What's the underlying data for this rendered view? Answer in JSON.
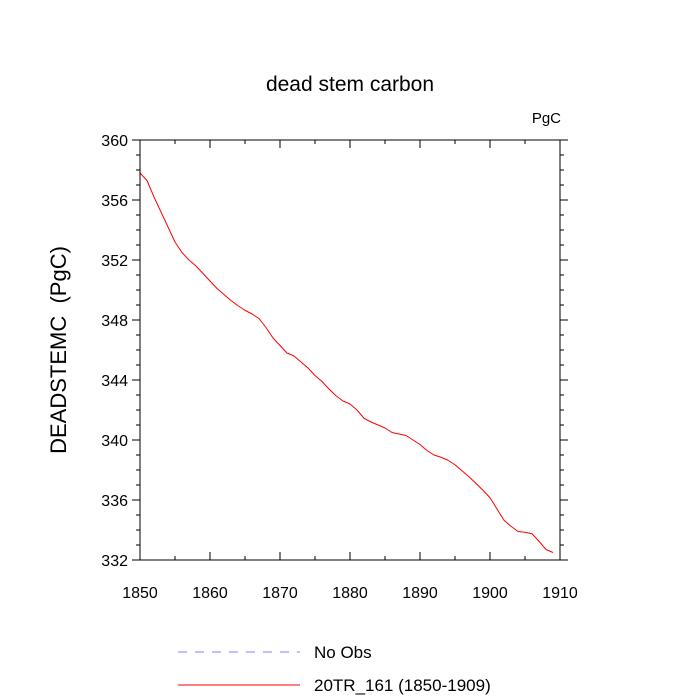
{
  "chart_data": {
    "type": "line",
    "title": "dead stem carbon",
    "units_label": "PgC",
    "xlabel": "",
    "ylabel": "DEADSTEMC  (PgC)",
    "xlim": [
      1850,
      1910
    ],
    "ylim": [
      332,
      360
    ],
    "x_ticks": [
      1850,
      1860,
      1870,
      1880,
      1890,
      1900,
      1910
    ],
    "y_ticks": [
      332,
      336,
      340,
      344,
      348,
      352,
      356,
      360
    ],
    "x_minor_step": 5,
    "y_minor_step": 1,
    "grid": false,
    "legend_position": "bottom",
    "legend": [
      {
        "name": "No Obs",
        "color": "#8080ff",
        "dash": "dashed"
      },
      {
        "name": "20TR_161 (1850-1909)",
        "color": "#ff0000",
        "dash": "solid"
      }
    ],
    "series": [
      {
        "name": "20TR_161 (1850-1909)",
        "color": "#ff0000",
        "x": [
          1850,
          1851,
          1852,
          1853,
          1854,
          1855,
          1856,
          1857,
          1858,
          1859,
          1860,
          1861,
          1862,
          1863,
          1864,
          1865,
          1866,
          1867,
          1868,
          1869,
          1870,
          1871,
          1872,
          1873,
          1874,
          1875,
          1876,
          1877,
          1878,
          1879,
          1880,
          1881,
          1882,
          1883,
          1884,
          1885,
          1886,
          1887,
          1888,
          1889,
          1890,
          1891,
          1892,
          1893,
          1894,
          1895,
          1896,
          1897,
          1898,
          1899,
          1900,
          1901,
          1902,
          1903,
          1904,
          1905,
          1906,
          1907,
          1908,
          1909
        ],
        "values": [
          357.8,
          357.3,
          356.2,
          355.2,
          354.2,
          353.2,
          352.5,
          352.0,
          351.6,
          351.1,
          350.6,
          350.1,
          349.7,
          349.3,
          348.95,
          348.65,
          348.4,
          348.1,
          347.5,
          346.8,
          346.3,
          345.8,
          345.6,
          345.2,
          344.8,
          344.3,
          343.9,
          343.4,
          342.95,
          342.6,
          342.4,
          342.0,
          341.45,
          341.2,
          341.0,
          340.8,
          340.5,
          340.4,
          340.3,
          340.0,
          339.7,
          339.3,
          339.0,
          338.85,
          338.65,
          338.35,
          337.95,
          337.55,
          337.1,
          336.65,
          336.15,
          335.4,
          334.65,
          334.25,
          333.9,
          333.85,
          333.75,
          333.25,
          332.7,
          332.5
        ]
      }
    ]
  }
}
